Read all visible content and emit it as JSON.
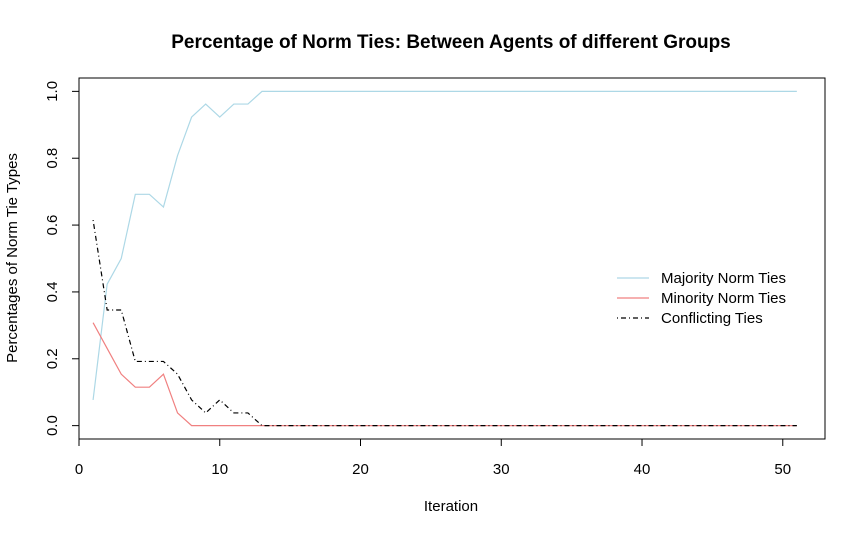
{
  "chart_data": {
    "type": "line",
    "title": "Percentage of Norm Ties: Between Agents of different Groups",
    "xlabel": "Iteration",
    "ylabel": "Percentages of Norm Tie Types",
    "xlim": [
      0,
      53
    ],
    "ylim": [
      -0.04,
      1.04
    ],
    "xticks": [
      0,
      10,
      20,
      30,
      40,
      50
    ],
    "xtick_labels": [
      "0",
      "10",
      "20",
      "30",
      "40",
      "50"
    ],
    "yticks": [
      0.0,
      0.2,
      0.4,
      0.6,
      0.8,
      1.0
    ],
    "ytick_labels": [
      "0.0",
      "0.2",
      "0.4",
      "0.6",
      "0.8",
      "1.0"
    ],
    "grid": false,
    "legend_position": "right",
    "x": [
      1,
      2,
      3,
      4,
      5,
      6,
      7,
      8,
      9,
      10,
      11,
      12,
      13,
      14,
      15,
      16,
      17,
      18,
      19,
      20,
      21,
      22,
      23,
      24,
      25,
      26,
      27,
      28,
      29,
      30,
      31,
      32,
      33,
      34,
      35,
      36,
      37,
      38,
      39,
      40,
      41,
      42,
      43,
      44,
      45,
      46,
      47,
      48,
      49,
      50,
      51
    ],
    "series": [
      {
        "name": "Majority Norm Ties",
        "color": "#add8e6",
        "style": "solid",
        "values": [
          0.077,
          0.423,
          0.5,
          0.692,
          0.692,
          0.654,
          0.808,
          0.923,
          0.962,
          0.923,
          0.962,
          0.962,
          1,
          1,
          1,
          1,
          1,
          1,
          1,
          1,
          1,
          1,
          1,
          1,
          1,
          1,
          1,
          1,
          1,
          1,
          1,
          1,
          1,
          1,
          1,
          1,
          1,
          1,
          1,
          1,
          1,
          1,
          1,
          1,
          1,
          1,
          1,
          1,
          1,
          1,
          1
        ]
      },
      {
        "name": "Minority Norm Ties",
        "color": "#f08080",
        "style": "solid",
        "values": [
          0.308,
          0.231,
          0.154,
          0.115,
          0.115,
          0.154,
          0.038,
          0,
          0,
          0,
          0,
          0,
          0,
          0,
          0,
          0,
          0,
          0,
          0,
          0,
          0,
          0,
          0,
          0,
          0,
          0,
          0,
          0,
          0,
          0,
          0,
          0,
          0,
          0,
          0,
          0,
          0,
          0,
          0,
          0,
          0,
          0,
          0,
          0,
          0,
          0,
          0,
          0,
          0,
          0,
          0
        ]
      },
      {
        "name": "Conflicting Ties",
        "color": "#000000",
        "style": "dotdash",
        "values": [
          0.615,
          0.346,
          0.346,
          0.192,
          0.192,
          0.192,
          0.154,
          0.077,
          0.038,
          0.077,
          0.038,
          0.038,
          0,
          0,
          0,
          0,
          0,
          0,
          0,
          0,
          0,
          0,
          0,
          0,
          0,
          0,
          0,
          0,
          0,
          0,
          0,
          0,
          0,
          0,
          0,
          0,
          0,
          0,
          0,
          0,
          0,
          0,
          0,
          0,
          0,
          0,
          0,
          0,
          0,
          0,
          0
        ]
      }
    ]
  }
}
